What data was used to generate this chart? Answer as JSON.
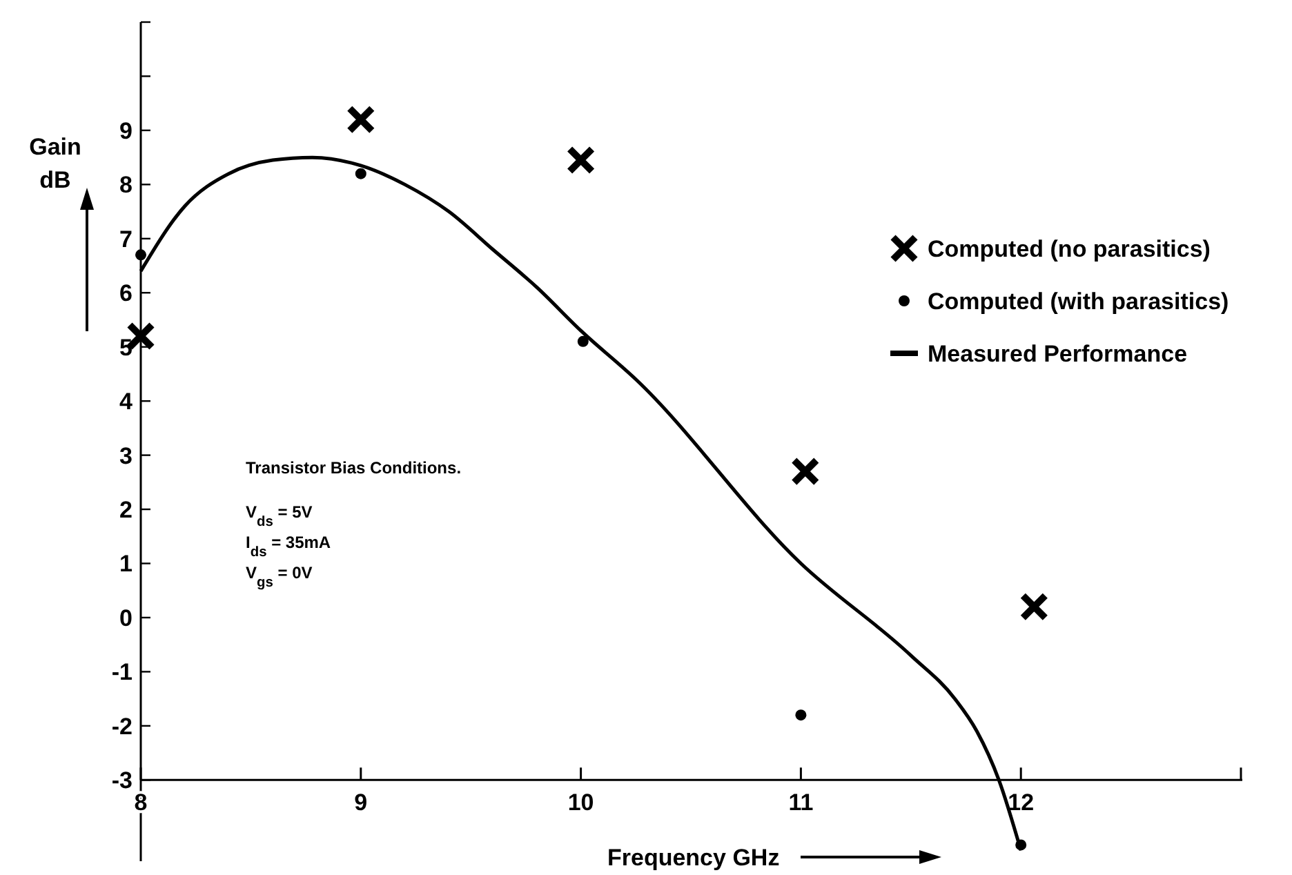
{
  "chart_data": {
    "type": "scatter",
    "xlabel": "Frequency GHz",
    "ylabel": "Gain dB",
    "xlim": [
      8,
      13
    ],
    "ylim": [
      -4.5,
      11
    ],
    "xticks": [
      8,
      9,
      10,
      11,
      12
    ],
    "yticks": [
      -3,
      -2,
      -1,
      0,
      1,
      2,
      3,
      4,
      5,
      6,
      7,
      8,
      9,
      {
        "value": 10,
        "label": null
      },
      {
        "value": 11,
        "label": null
      }
    ],
    "legend": "right",
    "series": [
      {
        "name": "Computed (no parasitics)",
        "marker": "cross",
        "color": "#000000",
        "x": [
          8,
          9,
          10,
          11.02,
          12.06
        ],
        "values": [
          5.2,
          9.2,
          8.45,
          2.7,
          0.2
        ]
      },
      {
        "name": "Computed (with parasitics)",
        "marker": "circle",
        "color": "#000000",
        "x": [
          8,
          9,
          10.01,
          11,
          12
        ],
        "values": [
          6.7,
          8.2,
          5.1,
          -1.8,
          -4.2
        ]
      },
      {
        "name": "Measured Performance",
        "type": "line",
        "marker": "none",
        "line_style": "solid",
        "color": "#000000",
        "x": [
          8,
          8.2,
          8.4,
          8.6,
          8.78,
          9,
          9.2,
          9.4,
          9.6,
          9.8,
          10,
          10.25,
          11,
          11.5,
          11.7,
          11.8,
          11.9,
          12
        ],
        "values": [
          6.4,
          7.6,
          8.2,
          8.45,
          8.5,
          8.35,
          8,
          7.5,
          6.8,
          6.1,
          5.3,
          4.4,
          1,
          -0.7,
          -1.5,
          -2.1,
          -3,
          -4.3
        ]
      }
    ],
    "annotations": [
      "Transistor Bias Conditions.",
      "V$_{ds}$ = 5V",
      "I$_{ds}$ = 35mA",
      "V$_{gs}$ = 0V"
    ]
  }
}
